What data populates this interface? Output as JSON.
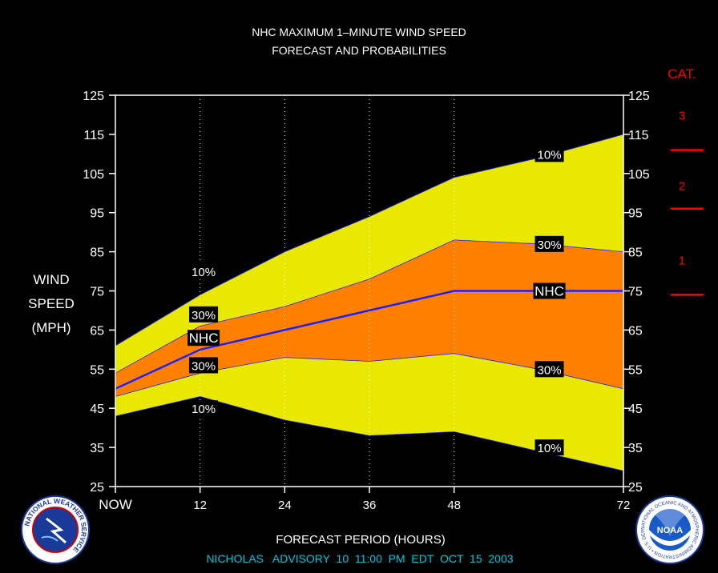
{
  "title": {
    "line1": "NHC MAXIMUM 1–MINUTE WIND SPEED",
    "line2": "FORECAST AND PROBABILITIES"
  },
  "y_axis_label": [
    "WIND",
    "SPEED",
    "(MPH)"
  ],
  "x_axis_label": "FORECAST PERIOD (HOURS)",
  "advisory": "NICHOLAS   ADVISORY  10  11:00  PM  EDT  OCT  15  2003",
  "category": {
    "title": "CAT.",
    "labels": [
      {
        "text": "3",
        "wind": 120
      },
      {
        "text": "2",
        "wind": 102
      },
      {
        "text": "1",
        "wind": 83
      }
    ],
    "thresholds": [
      111,
      96,
      74
    ]
  },
  "logos": {
    "nws": "NATIONAL WEATHER SERVICE",
    "noaa": "NOAA",
    "noaa_ring": "NATIONAL OCEANIC AND ATMOSPHERIC ADMINISTRATION • U.S. DEPARTMENT OF COMMERCE •"
  },
  "colors": {
    "background": "#000000",
    "band_10": "#e8e800",
    "band_30": "#ff8000",
    "nhc_line": "#2020ff",
    "category_marks": "#ff0000",
    "advisory_text": "#00c8e0"
  },
  "chart_data": {
    "type": "area",
    "x_ticks": [
      0,
      12,
      24,
      36,
      48,
      72
    ],
    "x_tick_labels": [
      "NOW",
      "12",
      "24",
      "36",
      "48",
      "72"
    ],
    "y_ticks": [
      25,
      35,
      45,
      55,
      65,
      75,
      85,
      95,
      105,
      115,
      125
    ],
    "ylim": [
      25,
      125
    ],
    "xlim": [
      0,
      72
    ],
    "grid": "vertical dotted at 12, 24, 36, 48",
    "x": [
      0,
      12,
      24,
      36,
      48,
      60,
      72
    ],
    "series": [
      {
        "name": "10%",
        "role": "upper_10",
        "values": [
          61,
          74,
          85,
          94,
          104,
          109,
          115
        ]
      },
      {
        "name": "30%",
        "role": "upper_30",
        "values": [
          54,
          66,
          71,
          78,
          88,
          87,
          85
        ]
      },
      {
        "name": "NHC",
        "role": "nhc",
        "values": [
          50,
          60,
          65,
          70,
          75,
          75,
          75
        ]
      },
      {
        "name": "30%",
        "role": "lower_30",
        "values": [
          48,
          54,
          58,
          57,
          59,
          55,
          50
        ]
      },
      {
        "name": "10%",
        "role": "lower_10",
        "values": [
          43,
          48,
          42,
          38,
          39,
          34,
          29
        ]
      }
    ],
    "annotations": [
      {
        "text": "10%",
        "x": 12.5,
        "y": 80
      },
      {
        "text": "30%",
        "x": 12.5,
        "y": 69
      },
      {
        "text": "NHC",
        "x": 12.5,
        "y": 63
      },
      {
        "text": "30%",
        "x": 12.5,
        "y": 56
      },
      {
        "text": "10%",
        "x": 12.5,
        "y": 45
      },
      {
        "text": "10%",
        "x": 61.5,
        "y": 110
      },
      {
        "text": "30%",
        "x": 61.5,
        "y": 87
      },
      {
        "text": "NHC",
        "x": 61.5,
        "y": 75
      },
      {
        "text": "30%",
        "x": 61.5,
        "y": 55
      },
      {
        "text": "10%",
        "x": 61.5,
        "y": 35
      }
    ]
  }
}
